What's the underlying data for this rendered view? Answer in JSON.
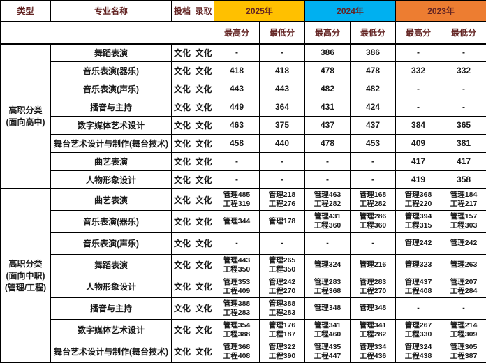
{
  "colors": {
    "year_2025_bg": "#FFC000",
    "year_2024_bg": "#00B0F0",
    "year_2023_bg": "#ED7D31",
    "header_text": "#632423",
    "body_text": "#1A1A1A",
    "border": "#000000",
    "background": "#FFFFFF"
  },
  "table": {
    "header": {
      "col_type": "类型",
      "col_major": "专业名称",
      "col_toudang": "投档",
      "col_luqu": "录取",
      "years": [
        {
          "label": "2025年",
          "bg": "#FFC000"
        },
        {
          "label": "2024年",
          "bg": "#00B0F0"
        },
        {
          "label": "2023年",
          "bg": "#ED7D31"
        }
      ],
      "sub_high": "最高分",
      "sub_low": "最低分"
    },
    "groups": [
      {
        "label_lines": [
          "高职分类",
          "(面向高中)"
        ],
        "rows": [
          {
            "major": "舞蹈表演",
            "toudang": "文化",
            "luqu": "文化",
            "scores": [
              [
                "-"
              ],
              [
                "-"
              ],
              [
                "386"
              ],
              [
                "386"
              ],
              [
                "-"
              ],
              [
                "-"
              ]
            ]
          },
          {
            "major": "音乐表演(器乐)",
            "toudang": "文化",
            "luqu": "文化",
            "scores": [
              [
                "418"
              ],
              [
                "418"
              ],
              [
                "478"
              ],
              [
                "478"
              ],
              [
                "332"
              ],
              [
                "332"
              ]
            ]
          },
          {
            "major": "音乐表演(声乐)",
            "toudang": "文化",
            "luqu": "文化",
            "scores": [
              [
                "443"
              ],
              [
                "443"
              ],
              [
                "482"
              ],
              [
                "482"
              ],
              [
                "-"
              ],
              [
                "-"
              ]
            ]
          },
          {
            "major": "播音与主持",
            "toudang": "文化",
            "luqu": "文化",
            "scores": [
              [
                "449"
              ],
              [
                "364"
              ],
              [
                "431"
              ],
              [
                "424"
              ],
              [
                "-"
              ],
              [
                "-"
              ]
            ]
          },
          {
            "major": "数字媒体艺术设计",
            "toudang": "文化",
            "luqu": "文化",
            "scores": [
              [
                "463"
              ],
              [
                "375"
              ],
              [
                "437"
              ],
              [
                "437"
              ],
              [
                "384"
              ],
              [
                "365"
              ]
            ]
          },
          {
            "major": "舞台艺术设计与制作(舞台技术)",
            "toudang": "文化",
            "luqu": "文化",
            "scores": [
              [
                "458"
              ],
              [
                "440"
              ],
              [
                "478"
              ],
              [
                "453"
              ],
              [
                "409"
              ],
              [
                "381"
              ]
            ]
          },
          {
            "major": "曲艺表演",
            "toudang": "文化",
            "luqu": "文化",
            "scores": [
              [
                "-"
              ],
              [
                "-"
              ],
              [
                "-"
              ],
              [
                "-"
              ],
              [
                "417"
              ],
              [
                "417"
              ]
            ]
          },
          {
            "major": "人物形象设计",
            "toudang": "文化",
            "luqu": "文化",
            "scores": [
              [
                "-"
              ],
              [
                "-"
              ],
              [
                "-"
              ],
              [
                "-"
              ],
              [
                "419"
              ],
              [
                "358"
              ]
            ]
          }
        ]
      },
      {
        "label_lines": [
          "高职分类",
          "(面向中职)",
          "(管理/工程)"
        ],
        "rows": [
          {
            "major": "曲艺表演",
            "toudang": "文化",
            "luqu": "文化",
            "scores": [
              [
                "管理485",
                "工程319"
              ],
              [
                "管理218",
                "工程276"
              ],
              [
                "管理463",
                "工程282"
              ],
              [
                "管理168",
                "工程282"
              ],
              [
                "管理368",
                "工程220"
              ],
              [
                "管理184",
                "工程217"
              ]
            ]
          },
          {
            "major": "音乐表演(器乐)",
            "toudang": "文化",
            "luqu": "文化",
            "scores": [
              [
                "管理344"
              ],
              [
                "管理178"
              ],
              [
                "管理431",
                "工程360"
              ],
              [
                "管理286",
                "工程360"
              ],
              [
                "管理394",
                "工程315"
              ],
              [
                "管理157",
                "工程303"
              ]
            ]
          },
          {
            "major": "音乐表演(声乐)",
            "toudang": "文化",
            "luqu": "文化",
            "scores": [
              [
                "-"
              ],
              [
                "-"
              ],
              [
                "-"
              ],
              [
                "-"
              ],
              [
                "管理242"
              ],
              [
                "管理242"
              ]
            ]
          },
          {
            "major": "舞蹈表演",
            "toudang": "文化",
            "luqu": "文化",
            "scores": [
              [
                "管理443",
                "工程350"
              ],
              [
                "管理265",
                "工程350"
              ],
              [
                "管理324"
              ],
              [
                "管理216"
              ],
              [
                "管理323"
              ],
              [
                "管理263"
              ]
            ]
          },
          {
            "major": "人物形象设计",
            "toudang": "文化",
            "luqu": "文化",
            "scores": [
              [
                "管理353",
                "工程409"
              ],
              [
                "管理242",
                "工程270"
              ],
              [
                "管理283",
                "工程368"
              ],
              [
                "管理283",
                "工程270"
              ],
              [
                "管理437",
                "工程408"
              ],
              [
                "管理207",
                "工程284"
              ]
            ]
          },
          {
            "major": "播音与主持",
            "toudang": "文化",
            "luqu": "文化",
            "scores": [
              [
                "管理388",
                "工程283"
              ],
              [
                "管理388",
                "工程283"
              ],
              [
                "管理348"
              ],
              [
                "管理348"
              ],
              [
                "-"
              ],
              [
                "-"
              ]
            ]
          },
          {
            "major": "数字媒体艺术设计",
            "toudang": "文化",
            "luqu": "文化",
            "scores": [
              [
                "管理354",
                "工程388"
              ],
              [
                "管理176",
                "工程187"
              ],
              [
                "管理341",
                "工程460"
              ],
              [
                "管理341",
                "工程282"
              ],
              [
                "管理267",
                "工程330"
              ],
              [
                "管理214",
                "工程309"
              ]
            ]
          },
          {
            "major": "舞台艺术设计与制作(舞台技术)",
            "toudang": "文化",
            "luqu": "文化",
            "scores": [
              [
                "管理368",
                "工程408"
              ],
              [
                "管理322",
                "工程390"
              ],
              [
                "管理435",
                "工程447"
              ],
              [
                "管理334",
                "工程436"
              ],
              [
                "管理324",
                "工程438"
              ],
              [
                "管理305",
                "工程387"
              ]
            ]
          }
        ]
      }
    ]
  }
}
